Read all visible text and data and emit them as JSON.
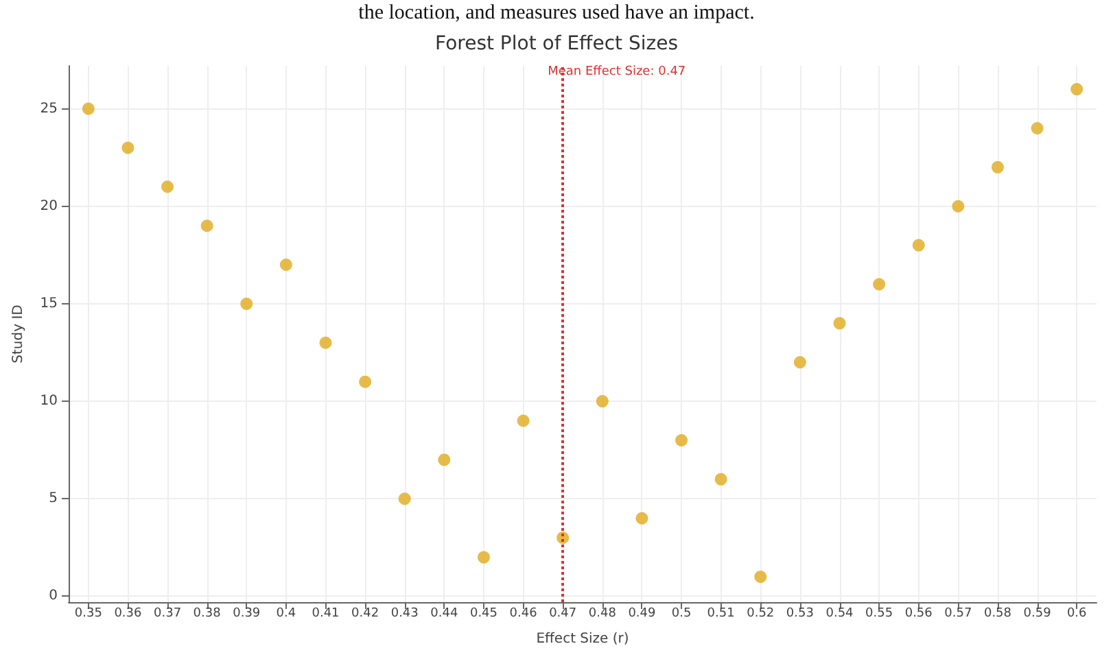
{
  "chart_data": {
    "type": "scatter",
    "title": "Forest Plot of Effect Sizes",
    "xlabel": "Effect Size (r)",
    "ylabel": "Study ID",
    "annotations": [
      "the location, and measures used have an impact."
    ],
    "x": [
      0.35,
      0.36,
      0.37,
      0.38,
      0.39,
      0.4,
      0.41,
      0.42,
      0.43,
      0.44,
      0.45,
      0.46,
      0.47,
      0.48,
      0.49,
      0.5,
      0.51,
      0.52,
      0.53,
      0.54,
      0.55,
      0.56,
      0.57,
      0.58,
      0.59,
      0.6
    ],
    "series": [
      {
        "color": "#e0aa1c",
        "values": [
          25,
          23,
          21,
          19,
          15,
          17,
          13,
          11,
          5,
          7,
          2,
          9,
          3,
          10,
          4,
          8,
          6,
          1,
          12,
          14,
          16,
          18,
          20,
          22,
          24,
          26
        ]
      }
    ],
    "xlim": [
      0.345,
      0.605
    ],
    "xticks": [
      0.35,
      0.36,
      0.37,
      0.38,
      0.39,
      0.4,
      0.41,
      0.42,
      0.43,
      0.44,
      0.45,
      0.46,
      0.47,
      0.48,
      0.49,
      0.5,
      0.51,
      0.52,
      0.53,
      0.54,
      0.55,
      0.56,
      0.57,
      0.58,
      0.59,
      0.6
    ],
    "ylim": [
      -0.3,
      27.2
    ],
    "yticks": [
      0,
      5,
      10,
      15,
      20,
      25
    ],
    "ref_lines": [
      {
        "axis": "x",
        "value": 0.47,
        "label": "Mean Effect Size: 0.47",
        "color": "#e03030",
        "line_style": "dotted"
      }
    ],
    "grid": true,
    "marker": "circle"
  }
}
